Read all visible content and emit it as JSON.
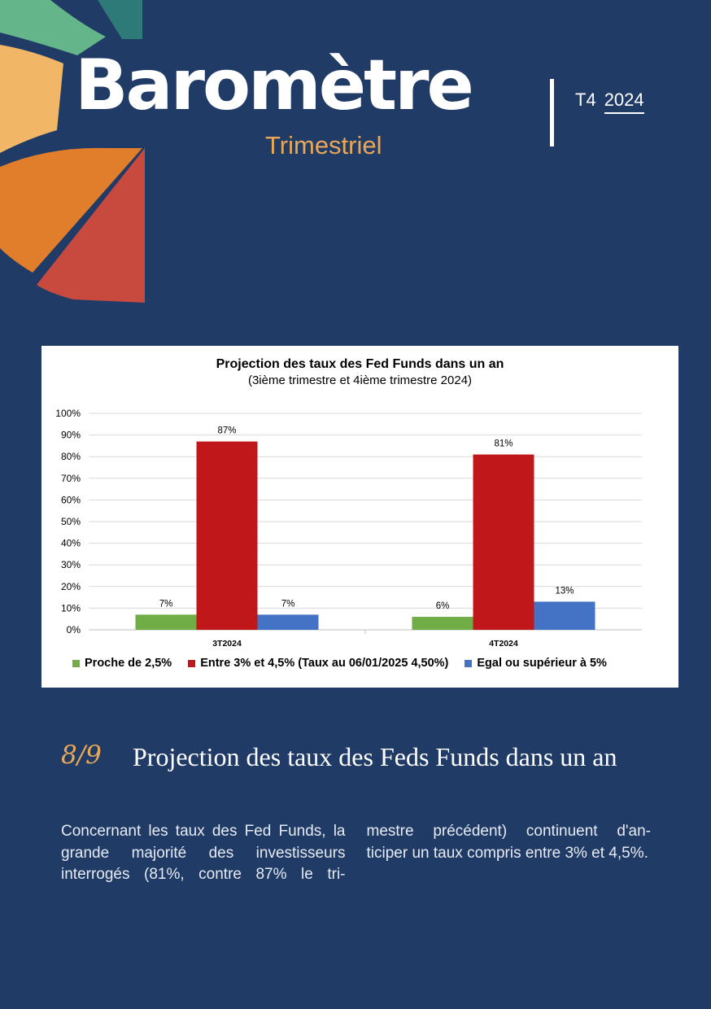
{
  "header": {
    "brand_title": "Barometre",
    "brand_title_display": "Baromètre",
    "brand_subtitle": "Trimestriel",
    "quarter": "T4",
    "year": "2024"
  },
  "colors": {
    "background": "#213b67",
    "accent": "#e8a857",
    "series_green": "#70ad47",
    "series_red": "#c0181a",
    "series_blue": "#4472c4"
  },
  "chart_data": {
    "type": "bar",
    "title": "Projection des taux des Fed Funds dans un an",
    "subtitle": "(3ième trimestre et 4ième trimestre 2024)",
    "categories": [
      "3T2024",
      "4T2024"
    ],
    "series": [
      {
        "name": "Proche de 2,5%",
        "values": [
          7,
          6
        ],
        "labels": [
          "7%",
          "6%"
        ],
        "color": "#70ad47"
      },
      {
        "name": "Entre 3% et 4,5% (Taux au 06/01/2025 4,50%)",
        "values": [
          87,
          81
        ],
        "labels": [
          "87%",
          "81%"
        ],
        "color": "#c0181a"
      },
      {
        "name": "Egal ou supérieur à 5%",
        "values": [
          7,
          13
        ],
        "labels": [
          "7%",
          "13%"
        ],
        "color": "#4472c4"
      }
    ],
    "ylim": [
      0,
      100
    ],
    "yticks": [
      "0%",
      "10%",
      "20%",
      "30%",
      "40%",
      "50%",
      "60%",
      "70%",
      "80%",
      "90%",
      "100%"
    ],
    "grid": true,
    "legend": "bottom"
  },
  "section": {
    "number": "8/9",
    "title": "Projection des taux des Feds Funds dans un an"
  },
  "body": {
    "text": "Concernant les taux des Fed Funds, la grande majorité des investisseurs interrogés (81%, contre 87% le tri- mestre précédent) continuent d'an- ticiper un taux compris entre 3% et 4,5%."
  }
}
